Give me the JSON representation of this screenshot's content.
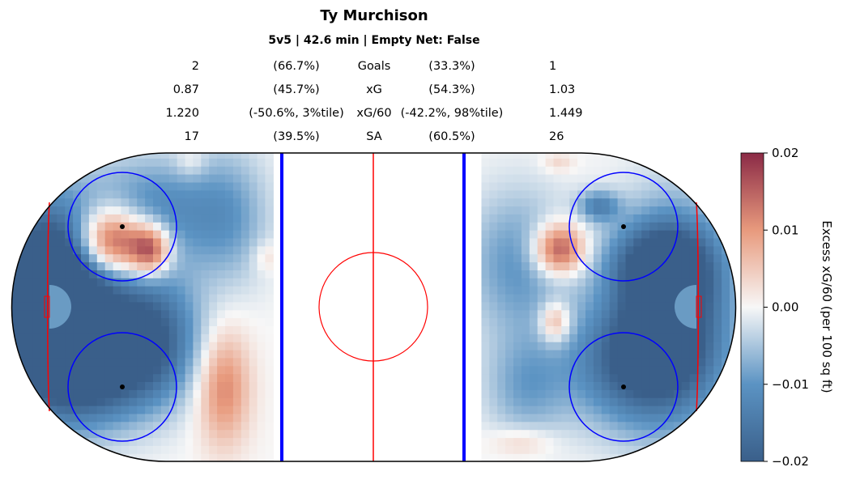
{
  "title": "Ty Murchison",
  "subtitle": "5v5 | 42.6 min | Empty Net: False",
  "stats": [
    {
      "left_value": "2",
      "left_pct": "(66.7%)",
      "label": "Goals",
      "right_pct": "(33.3%)",
      "right_value": "1"
    },
    {
      "left_value": "0.87",
      "left_pct": "(45.7%)",
      "label": "xG",
      "right_pct": "(54.3%)",
      "right_value": "1.03"
    },
    {
      "left_value": "1.220",
      "left_pct": "(-50.6%, 3%tile)",
      "label": "xG/60",
      "right_pct": "(-42.2%, 98%tile)",
      "right_value": "1.449"
    },
    {
      "left_value": "17",
      "left_pct": "(39.5%)",
      "label": "SA",
      "right_pct": "(60.5%)",
      "right_value": "26"
    }
  ],
  "colors": {
    "board": "#000000",
    "red_line": "#ff0000",
    "blue_line": "#0000ff",
    "crease": "#6a9bc3",
    "dark_red": "#8b2a46",
    "dark_blue": "#3a5f8a"
  },
  "chart_data": {
    "type": "heatmap",
    "title": "Ty Murchison",
    "subtitle": "5v5 | 42.6 min | Empty Net: False",
    "colormap": "RdBu_r",
    "colorbar": {
      "label": "Excess xG/60 (per 100 sq ft)",
      "vmin": -0.02,
      "vmax": 0.02,
      "ticks": [
        0.02,
        0.01,
        0.0,
        -0.01,
        -0.02
      ],
      "tick_labels": [
        "0.02",
        "0.01",
        "0.00",
        "−0.01",
        "−0.02"
      ]
    },
    "x_range_ft": [
      -100,
      100
    ],
    "y_range_ft": [
      -42.5,
      42.5
    ],
    "blobs": [
      {
        "x": -92,
        "y": 0,
        "sx": 12,
        "sy": 20,
        "v": -0.02
      },
      {
        "x": -82,
        "y": 8,
        "sx": 12,
        "sy": 14,
        "v": -0.02
      },
      {
        "x": -78,
        "y": -18,
        "sx": 12,
        "sy": 10,
        "v": -0.02
      },
      {
        "x": -60,
        "y": -8,
        "sx": 9,
        "sy": 12,
        "v": -0.017
      },
      {
        "x": -60,
        "y": 27,
        "sx": 11,
        "sy": 10,
        "v": -0.011
      },
      {
        "x": -40,
        "y": 25,
        "sx": 8,
        "sy": 13,
        "v": -0.009
      },
      {
        "x": -72,
        "y": 18,
        "sx": 7,
        "sy": 7,
        "v": 0.03
      },
      {
        "x": -61,
        "y": 16,
        "sx": 4,
        "sy": 5,
        "v": 0.02
      },
      {
        "x": -41,
        "y": -22,
        "sx": 5,
        "sy": 11,
        "v": 0.012
      },
      {
        "x": -50,
        "y": 40,
        "sx": 3,
        "sy": 3,
        "v": 0.004
      },
      {
        "x": -29,
        "y": 14,
        "sx": 3,
        "sy": 3,
        "v": 0.004
      },
      {
        "x": 83,
        "y": 0,
        "sx": 11,
        "sy": 19,
        "v": -0.02
      },
      {
        "x": 72,
        "y": -15,
        "sx": 13,
        "sy": 12,
        "v": -0.018
      },
      {
        "x": 79,
        "y": 12,
        "sx": 10,
        "sy": 8,
        "v": -0.016
      },
      {
        "x": 62,
        "y": 28,
        "sx": 4,
        "sy": 3,
        "v": -0.012
      },
      {
        "x": 40,
        "y": 12,
        "sx": 10,
        "sy": 14,
        "v": -0.01
      },
      {
        "x": 42,
        "y": -22,
        "sx": 8,
        "sy": 10,
        "v": -0.008
      },
      {
        "x": 51,
        "y": 16,
        "sx": 5,
        "sy": 5,
        "v": 0.02
      },
      {
        "x": 50,
        "y": -4,
        "sx": 3,
        "sy": 4,
        "v": 0.012
      },
      {
        "x": 41,
        "y": -37,
        "sx": 6,
        "sy": 3,
        "v": 0.005
      },
      {
        "x": 51,
        "y": 40,
        "sx": 3,
        "sy": 2,
        "v": 0.004
      }
    ]
  }
}
